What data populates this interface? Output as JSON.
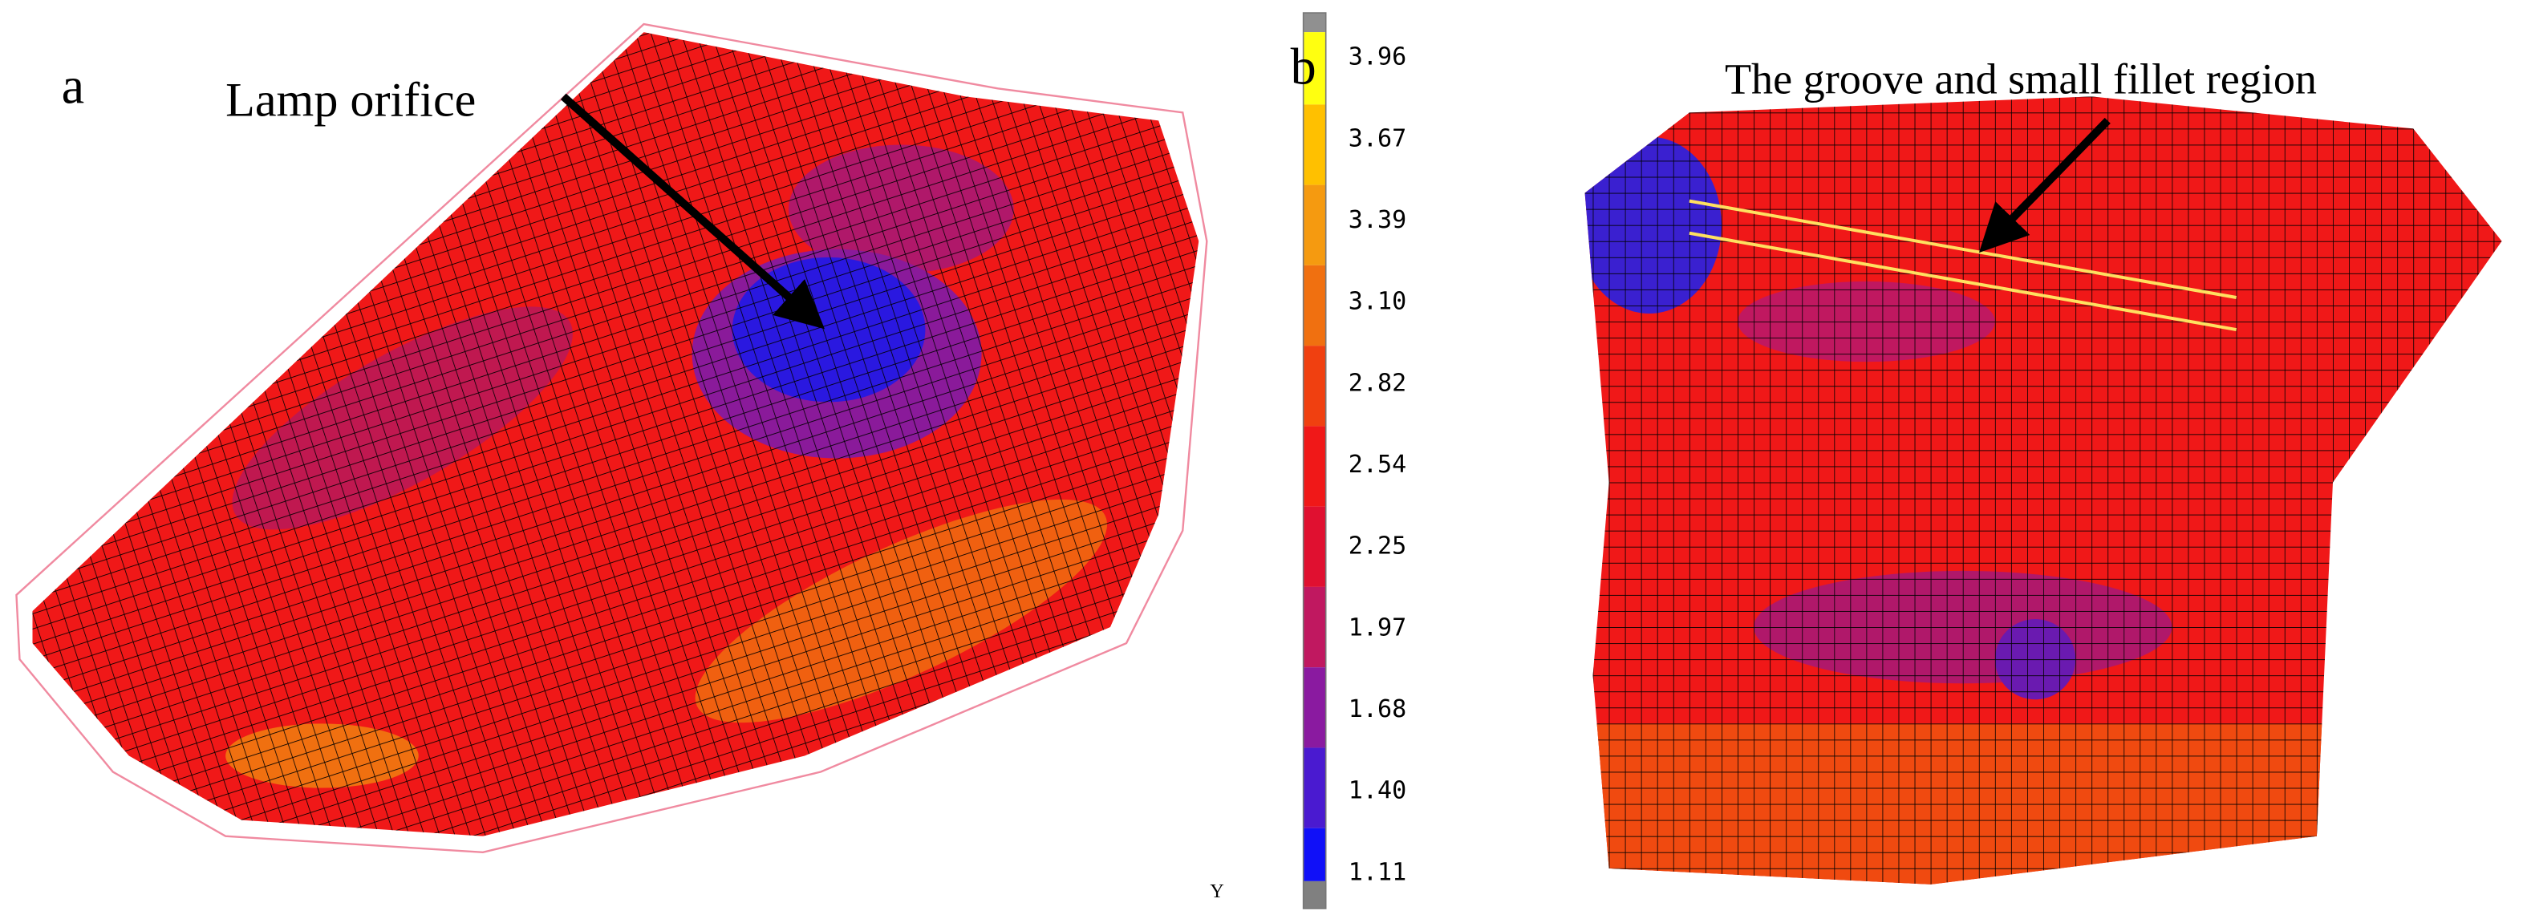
{
  "panel_a": {
    "label": "a",
    "annotation": "Lamp orifice"
  },
  "panel_b": {
    "label": "b",
    "annotation": "The groove and small fillet region"
  },
  "colorbar": {
    "labels": [
      "3.96",
      "3.67",
      "3.39",
      "3.10",
      "2.82",
      "2.54",
      "2.25",
      "1.97",
      "1.68",
      "1.40",
      "1.11"
    ]
  },
  "axis_glyph": "Y"
}
